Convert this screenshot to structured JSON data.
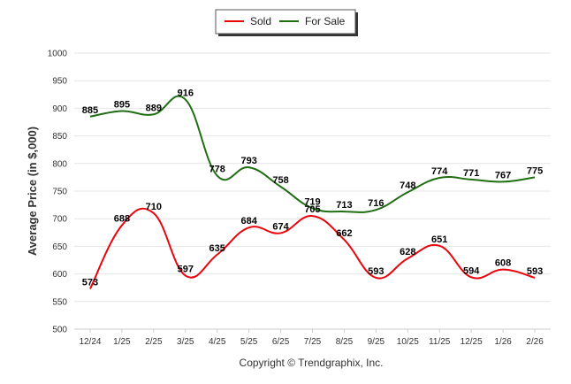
{
  "chart_data": {
    "type": "line",
    "title": "",
    "xlabel": "",
    "ylabel": "Average Price (in $,000)",
    "ylim": [
      500,
      1000
    ],
    "yticks": [
      500,
      550,
      600,
      650,
      700,
      750,
      800,
      850,
      900,
      950,
      1000
    ],
    "categories": [
      "12/24",
      "1/25",
      "2/25",
      "3/25",
      "4/25",
      "5/25",
      "6/25",
      "7/25",
      "8/25",
      "9/25",
      "10/25",
      "11/25",
      "12/25",
      "1/26",
      "2/26"
    ],
    "series": [
      {
        "name": "Sold",
        "color": "#e8050c",
        "values": [
          573,
          688,
          710,
          597,
          635,
          684,
          674,
          705,
          662,
          593,
          628,
          651,
          594,
          608,
          593
        ]
      },
      {
        "name": "For Sale",
        "color": "#1f6e12",
        "values": [
          885,
          895,
          889,
          916,
          778,
          793,
          758,
          719,
          713,
          716,
          748,
          774,
          771,
          767,
          775
        ]
      }
    ],
    "legend_position": "top-center",
    "grid": true
  },
  "footer": {
    "copyright": "Copyright © Trendgraphix, Inc."
  }
}
